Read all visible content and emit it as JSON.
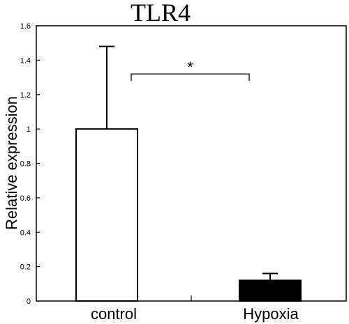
{
  "chart_data": {
    "type": "bar",
    "title": "TLR4",
    "ylabel": "Relative expression",
    "xlabel": "",
    "categories": [
      "control",
      "Hypoxia"
    ],
    "values": [
      1.0,
      0.12
    ],
    "error_upper": [
      1.48,
      0.16
    ],
    "bar_fills": [
      "#ffffff",
      "#000000"
    ],
    "ylim": [
      0,
      1.6
    ],
    "yticks": [
      0,
      0.2,
      0.4,
      0.6,
      0.8,
      1,
      1.2,
      1.4,
      1.6
    ],
    "ytick_labels": [
      "0",
      "0.2",
      "0.4",
      "0.6",
      "0.8",
      "1",
      "1.2",
      "1.4",
      "1.6"
    ],
    "significance": {
      "label": "*",
      "from": "control",
      "to": "Hypoxia",
      "level": 1.32
    },
    "grid": false,
    "legend": "none"
  }
}
